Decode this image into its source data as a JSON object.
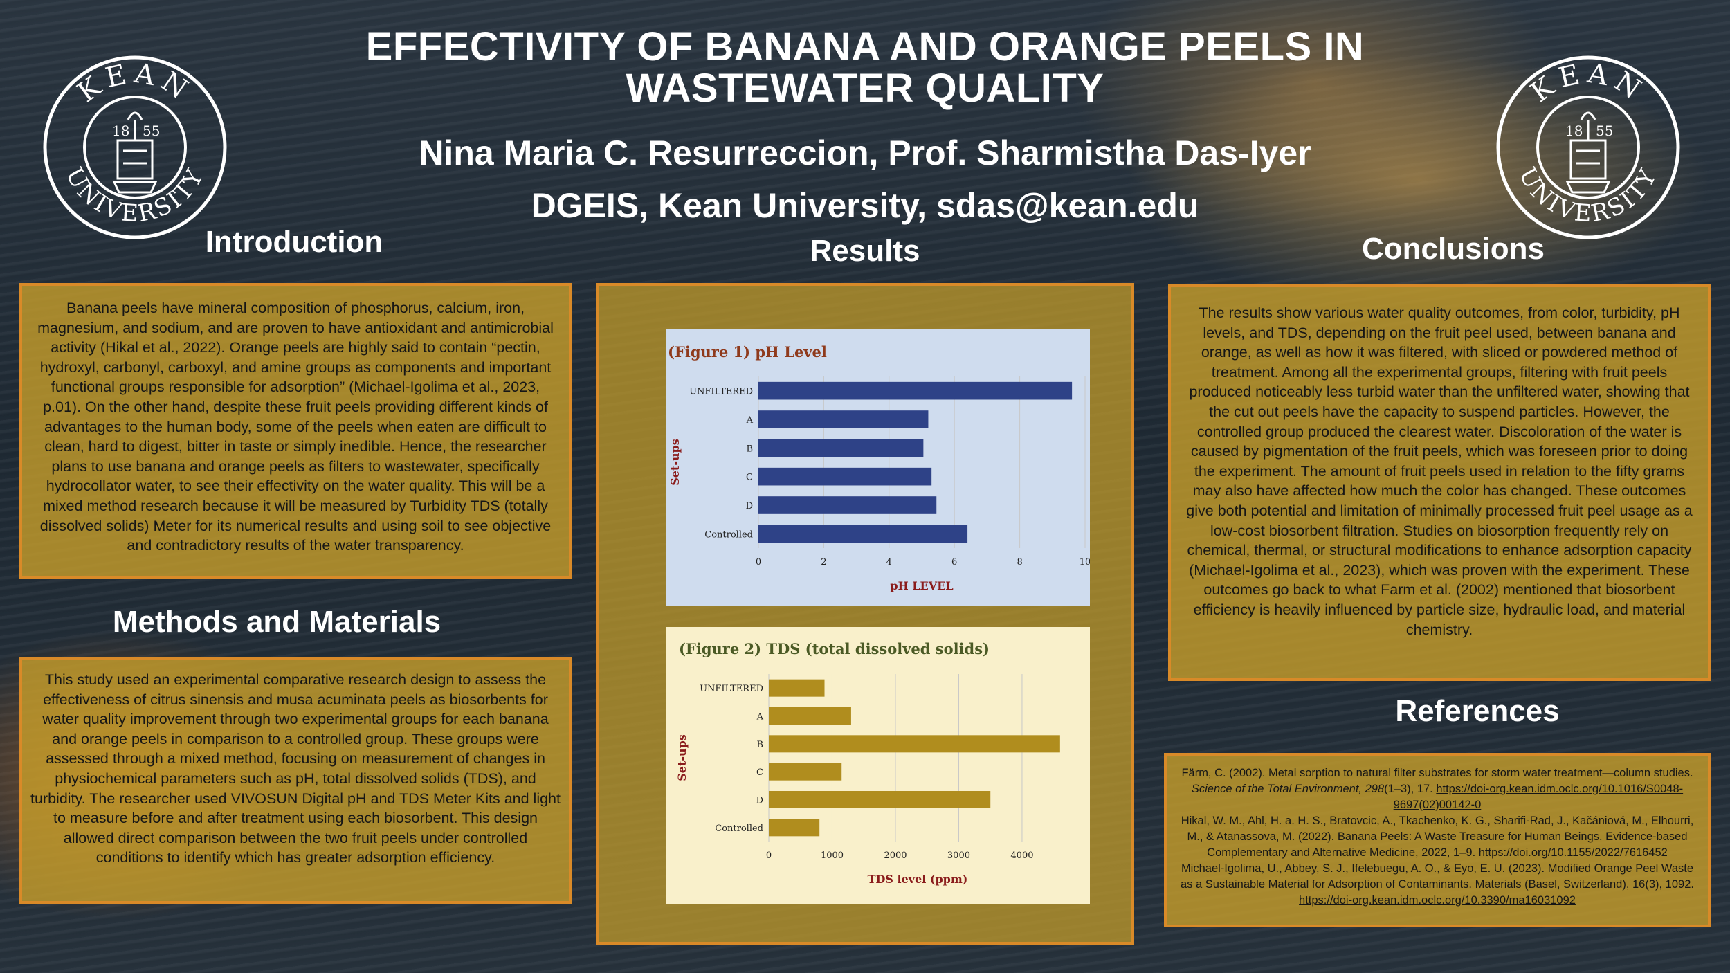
{
  "header": {
    "title_line1": "EFFECTIVITY OF BANANA AND ORANGE PEELS IN",
    "title_line2": "WASTEWATER QUALITY",
    "authors": "Nina Maria C. Resurreccion, Prof. Sharmistha Das-Iyer",
    "affiliation": "DGEIS, Kean University, sdas@kean.edu"
  },
  "logo": {
    "name_top": "KEAN",
    "name_bottom": "UNIVERSITY",
    "year_left": "18",
    "year_right": "55",
    "icon": "kean-university-seal"
  },
  "sections": {
    "introduction": {
      "heading": "Introduction",
      "body": "Banana peels have mineral composition of phosphorus, calcium, iron, magnesium, and sodium, and are proven to have antioxidant and antimicrobial activity (Hikal et al., 2022). Orange peels are highly said to contain “pectin, hydroxyl, carbonyl, carboxyl, and amine groups as components and important functional groups responsible for adsorption” (Michael-Igolima et al., 2023, p.01). On the other hand, despite these fruit peels providing different kinds of advantages to the human body, some of the peels when eaten are difficult to clean, hard to digest, bitter in taste or simply inedible. Hence, the researcher plans to use banana and orange peels as filters to wastewater, specifically hydrocollator water, to see their effectivity on the water quality. This will be a mixed method research because it will be measured by Turbidity TDS (totally dissolved solids) Meter for its numerical results and using soil to see objective and contradictory results of the water transparency."
    },
    "methods": {
      "heading": "Methods and Materials",
      "body": "This study used an experimental comparative research design to assess the effectiveness of citrus sinensis and musa acuminata peels as biosorbents for water quality improvement through two experimental groups for each banana and orange peels in comparison to a controlled group. These groups were assessed through a mixed method, focusing on measurement of changes in physiochemical parameters such as pH, total dissolved solids (TDS), and turbidity. The researcher used VIVOSUN Digital pH and TDS Meter Kits and light to measure before and after treatment using each biosorbent. This design allowed direct comparison between the two fruit peels under controlled conditions to identify which has greater adsorption efficiency."
    },
    "results": {
      "heading": "Results"
    },
    "conclusions": {
      "heading": "Conclusions",
      "body": "The results show various water quality outcomes, from color, turbidity, pH levels, and TDS, depending on the fruit peel used, between banana and orange, as well as how it was filtered, with sliced or powdered method of treatment. Among all the experimental groups, filtering with fruit peels produced noticeably less turbid water than the unfiltered water, showing that the cut out peels have the capacity to suspend particles. However, the controlled group produced the clearest water. Discoloration of the water is caused by pigmentation of the fruit peels, which was foreseen prior to doing the experiment. The amount of fruit peels used in relation to the fifty grams may also have affected how much the color has changed. These outcomes give both potential and limitation of minimally processed fruit peel usage as a low-cost biosorbent filtration. Studies on biosorption frequently rely on chemical, thermal, or structural modifications to enhance adsorption capacity (Michael-Igolima et al., 2023), which was proven with the experiment. These outcomes go back to what Farm et al. (2002) mentioned that biosorbent efficiency is heavily influenced by particle size, hydraulic load, and material chemistry."
    },
    "references": {
      "heading": "References",
      "ref1_text": "Färm, C. (2002). Metal sorption to natural filter substrates for storm water treatment—column studies. ",
      "ref1_journal": "Science of the Total Environment, 298",
      "ref1_pages": "(1–3), 17. ",
      "ref1_link": "https://doi-org.kean.idm.oclc.org/10.1016/S0048-9697(02)00142-0",
      "ref2_text": "Hikal, W. M., Ahl, H. a. H. S., Bratovcic, A., Tkachenko, K. G., Sharifi-Rad, J., Kačániová, M., Elhourri, M., & Atanassova, M. (2022). Banana Peels: A Waste Treasure for Human Beings. Evidence-based Complementary and Alternative Medicine, 2022, 1–9. ",
      "ref2_link": "https://doi.org/10.1155/2022/7616452",
      "ref3_text": "Michael-Igolima, U., Abbey, S. J., Ifelebuegu, A. O., & Eyo, E. U. (2023). Modified Orange Peel Waste as a Sustainable Material for Adsorption of Contaminants. Materials (Basel, Switzerland), 16(3), 1092. ",
      "ref3_link": "https://doi-org.kean.idm.oclc.org/10.3390/ma16031092"
    }
  },
  "colors": {
    "ph_bar": "#2e4287",
    "ph_bg": "#cfdcee",
    "tds_bar": "#b08d1e",
    "tds_bg": "#f9f0cb",
    "panel": "#cca22a",
    "panel_border": "#d98a28",
    "fig_title_ph": "#8f3a1c",
    "fig_title_tds": "#4b5a25",
    "axis_title": "#8a1c1c"
  },
  "chart_data": [
    {
      "type": "bar",
      "orientation": "horizontal",
      "title": "(Figure 1) pH Level",
      "xlabel": "pH LEVEL",
      "ylabel": "Set-ups",
      "categories": [
        "UNFILTERED",
        "A",
        "B",
        "C",
        "D",
        "Controlled"
      ],
      "values": [
        9.6,
        5.2,
        5.05,
        5.3,
        5.45,
        6.4
      ],
      "xlim": [
        0,
        10
      ],
      "xticks": [
        "0",
        "2",
        "4",
        "6",
        "8",
        "10"
      ],
      "grid": true,
      "legend": "none"
    },
    {
      "type": "bar",
      "orientation": "horizontal",
      "title": "(Figure 2) TDS (total dissolved solids)",
      "xlabel": "TDS level (ppm)",
      "ylabel": "Set-ups",
      "categories": [
        "UNFILTERED",
        "A",
        "B",
        "C",
        "D",
        "Controlled"
      ],
      "values": [
        880,
        1300,
        4600,
        1150,
        3500,
        800
      ],
      "xlim": [
        0,
        4700
      ],
      "xticks": [
        "0",
        "1000",
        "2000",
        "3000",
        "4000"
      ],
      "grid": true,
      "legend": "none"
    }
  ]
}
